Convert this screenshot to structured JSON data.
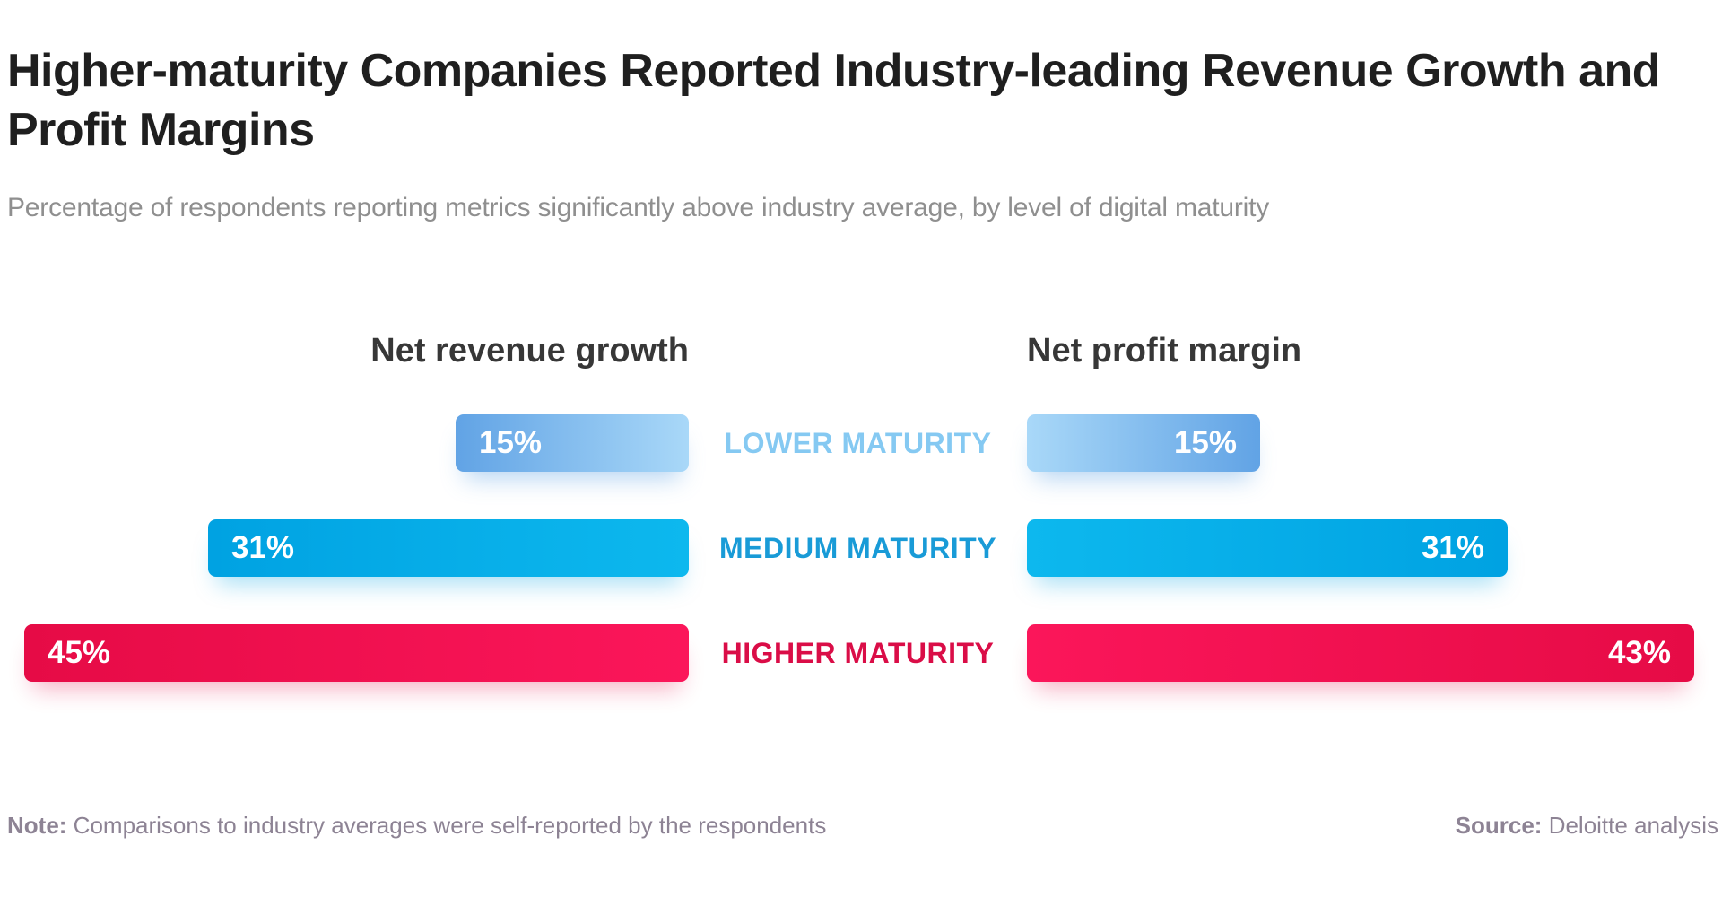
{
  "header": {
    "title": "Higher-maturity Companies Reported Industry-leading Revenue Growth and Profit Margins",
    "title_line1": "Higher-maturity Companies Reported Industry-leading Revenue Growth and",
    "title_line2": "Profit Margins",
    "subtitle": "Percentage of respondents reporting metrics significantly above industry average, by level of digital maturity"
  },
  "chart_data": {
    "type": "bar",
    "layout": "diverging-horizontal-two-sided",
    "categories": [
      "LOWER MATURITY",
      "MEDIUM MATURITY",
      "HIGHER MATURITY"
    ],
    "unit": "%",
    "xlim": [
      0,
      45
    ],
    "grid": false,
    "legend_position": "category-labels-centered-between-columns",
    "series": [
      {
        "name": "Net revenue growth",
        "side": "left",
        "values": [
          15,
          31,
          45
        ],
        "value_labels": [
          "15%",
          "31%",
          "45%"
        ]
      },
      {
        "name": "Net profit margin",
        "side": "right",
        "values": [
          15,
          31,
          43
        ],
        "value_labels": [
          "15%",
          "31%",
          "43%"
        ]
      }
    ],
    "colors": {
      "rows": [
        {
          "category": "LOWER MATURITY",
          "bar_outer": "#61a3e5",
          "bar_inner": "#a9d8f8",
          "label": "#85c9f2"
        },
        {
          "category": "MEDIUM MATURITY",
          "bar_outer": "#00a2e2",
          "bar_inner": "#0db8ee",
          "label": "#199bd7"
        },
        {
          "category": "HIGHER MATURITY",
          "bar_outer": "#e60b46",
          "bar_inner": "#fb165a",
          "label": "#da0d47"
        }
      ],
      "value_text": "#ffffff",
      "title_text": "#1f1f1f",
      "subtitle_text": "#8f8f8f",
      "header_text": "#373737",
      "footer_text": "#8d8394",
      "background": "#ffffff"
    }
  },
  "footer": {
    "note_label": "Note:",
    "note_text": "Comparisons to industry averages were self-reported by the respondents",
    "source_label": "Source:",
    "source_text": "Deloitte analysis"
  }
}
